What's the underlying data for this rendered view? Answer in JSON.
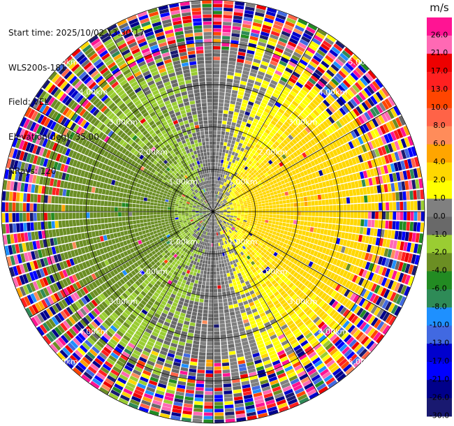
{
  "header": {
    "start_time": "Start time: 2025/10/02 13:30:17",
    "instrument": "WLS200s-181",
    "field": "Field: VEL",
    "elevation": "Elevation(deg): 35.00",
    "nrays": "NRays: 120"
  },
  "chart_data": {
    "type": "heatmap",
    "projection": "polar-ppi",
    "field": "VEL",
    "units": "m/s",
    "n_rays": 120,
    "n_gates": 60,
    "max_range_km": 5.0,
    "range_ring_labels": [
      "1.00km",
      "2.00km",
      "3.00km",
      "4.00km",
      "5.00km"
    ],
    "spoke_angles_deg": [
      0,
      30,
      60,
      90,
      120,
      150,
      180,
      210,
      240,
      270,
      300,
      330
    ],
    "colorbar": {
      "title": "m/s",
      "tick_labels": [
        "26.0",
        "21.0",
        "17.0",
        "13.0",
        "10.0",
        "8.0",
        "6.0",
        "4.0",
        "2.0",
        "1.0",
        "0.0",
        "-1.0",
        "-2.0",
        "-4.0",
        "-6.0",
        "-8.0",
        "-10.0",
        "-13.0",
        "-17.0",
        "-21.0",
        "-26.0",
        "-30.0"
      ],
      "bins": [
        {
          "min": 26,
          "max": 30,
          "color": "#ff1493"
        },
        {
          "min": 21,
          "max": 26,
          "color": "#ff69b4"
        },
        {
          "min": 17,
          "max": 21,
          "color": "#ee0000"
        },
        {
          "min": 13,
          "max": 17,
          "color": "#ff2020"
        },
        {
          "min": 10,
          "max": 13,
          "color": "#ff4500"
        },
        {
          "min": 8,
          "max": 10,
          "color": "#ff6347"
        },
        {
          "min": 6,
          "max": 8,
          "color": "#ff8c5a"
        },
        {
          "min": 4,
          "max": 6,
          "color": "#ffa500"
        },
        {
          "min": 2,
          "max": 4,
          "color": "#ffd700"
        },
        {
          "min": 1,
          "max": 2,
          "color": "#ffff00"
        },
        {
          "min": 0,
          "max": 1,
          "color": "#808080"
        },
        {
          "min": -1,
          "max": 0,
          "color": "#696969"
        },
        {
          "min": -2,
          "max": -1,
          "color": "#9acd32"
        },
        {
          "min": -4,
          "max": -2,
          "color": "#6b8e23"
        },
        {
          "min": -6,
          "max": -4,
          "color": "#228b22"
        },
        {
          "min": -8,
          "max": -6,
          "color": "#2e8b57"
        },
        {
          "min": -10,
          "max": -8,
          "color": "#1e90ff"
        },
        {
          "min": -13,
          "max": -10,
          "color": "#4169e1"
        },
        {
          "min": -17,
          "max": -13,
          "color": "#0000cd"
        },
        {
          "min": -21,
          "max": -17,
          "color": "#0000ff"
        },
        {
          "min": -26,
          "max": -21,
          "color": "#00008b"
        },
        {
          "min": -30,
          "max": -26,
          "color": "#191970"
        }
      ]
    },
    "wind_pattern": {
      "description_free": true,
      "toward_azimuth_deg": 90,
      "radial_amplitude_ms": [
        {
          "range_km": 0.0,
          "amp": 0.5
        },
        {
          "range_km": 0.5,
          "amp": 1.5
        },
        {
          "range_km": 1.0,
          "amp": 2.8
        },
        {
          "range_km": 2.0,
          "amp": 3.4
        },
        {
          "range_km": 3.0,
          "amp": 3.2
        },
        {
          "range_km": 3.7,
          "amp": 3.0
        }
      ],
      "noisy_beyond_km": 3.5
    }
  }
}
